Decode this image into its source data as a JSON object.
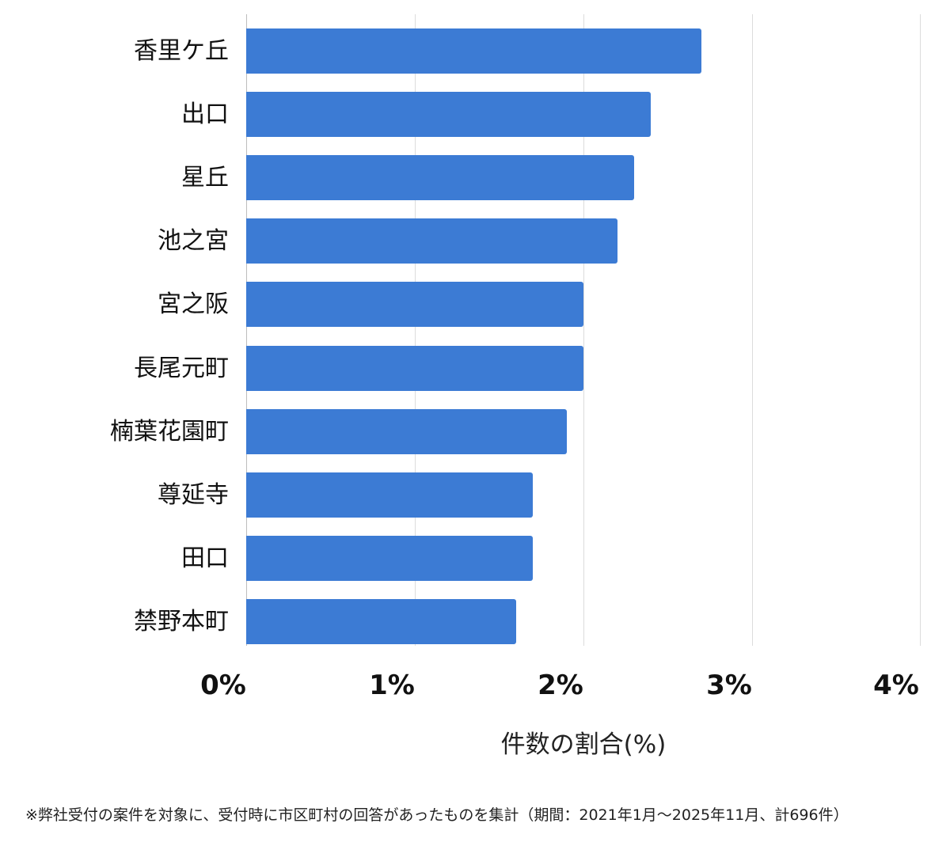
{
  "chart_data": {
    "type": "bar",
    "orientation": "horizontal",
    "categories": [
      "香里ケ丘",
      "出口",
      "星丘",
      "池之宮",
      "宮之阪",
      "長尾元町",
      "楠葉花園町",
      "尊延寺",
      "田口",
      "禁野本町"
    ],
    "values": [
      2.7,
      2.4,
      2.3,
      2.2,
      2.0,
      2.0,
      1.9,
      1.7,
      1.7,
      1.6
    ],
    "title": "",
    "xlabel": "件数の割合(%)",
    "ylabel": "",
    "xlim": [
      0,
      4
    ],
    "xticks": [
      "0%",
      "1%",
      "2%",
      "3%",
      "4%"
    ],
    "grid": true,
    "legend": "none",
    "bar_color": "#3c7bd4"
  },
  "footnote": "※弊社受付の案件を対象に、受付時に市区町村の回答があったものを集計（期間：2021年1月～2025年11月、計696件）"
}
